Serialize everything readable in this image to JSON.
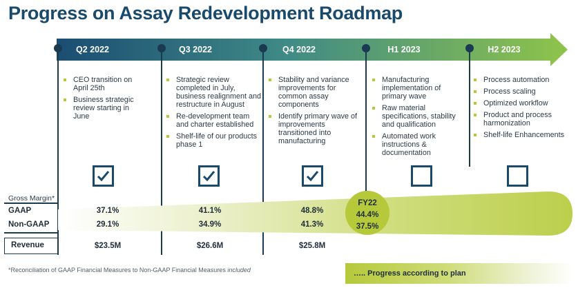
{
  "title": "Progress on Assay Redevelopment Roadmap",
  "colors": {
    "accent": "#b5c93a",
    "navy": "#1a3a52",
    "arrow_start": "#1b4d72",
    "arrow_end": "#8fc44a"
  },
  "periods": [
    "Q2 2022",
    "Q3 2022",
    "Q4 2022",
    "H1 2023",
    "H2 2023"
  ],
  "columns": [
    {
      "bullets": [
        "CEO transition on April 25th",
        "Business strategic review starting in June"
      ],
      "status": "checked"
    },
    {
      "bullets": [
        "Strategic review completed in July, business realignment and restructure in August",
        "Re-development team and charter established",
        "Shelf-life of our products phase 1"
      ],
      "status": "checked"
    },
    {
      "bullets": [
        "Stability and variance improvements for common assay components",
        "Identify primary wave of improvements transitioned into manufacturing"
      ],
      "status": "checked"
    },
    {
      "bullets": [
        "Manufacturing implementation of primary wave",
        "Raw material specifications, stability and qualification",
        "Automated work instructions & documentation"
      ],
      "status": "unchecked"
    },
    {
      "bullets": [
        "Process automation",
        "Process scaling",
        "Optimized workflow",
        "Product and process harmonization",
        "Shelf-life Enhancements"
      ],
      "status": "unchecked"
    }
  ],
  "gross_margin": {
    "label": "Gross Margin*",
    "gaap_label": "GAAP",
    "nongaap_label": "Non-GAAP",
    "gaap": [
      "37.1%",
      "41.1%",
      "48.8%"
    ],
    "nongaap": [
      "29.1%",
      "34.9%",
      "41.3%"
    ]
  },
  "fy22": {
    "label": "FY22",
    "gaap": "44.4%",
    "nongaap": "37.5%"
  },
  "revenue": {
    "label": "Revenue",
    "values": [
      "$23.5M",
      "$26.6M",
      "$25.8M"
    ]
  },
  "footnote": "*Reconciliation of GAAP Financial Measures to Non-GAAP Financial Measures",
  "footnote_italic": "included",
  "legend": "….. Progress according to plan"
}
